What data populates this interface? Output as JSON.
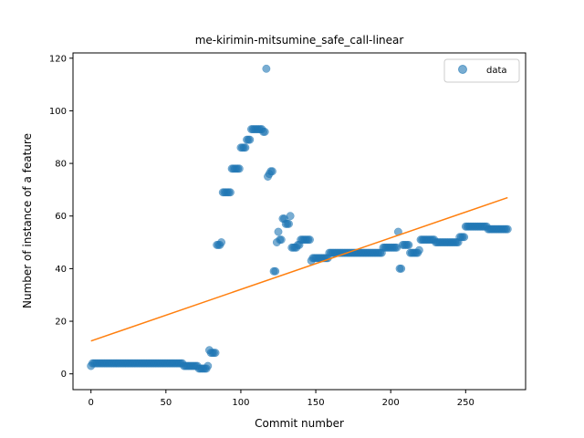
{
  "chart_data": {
    "type": "scatter",
    "title": "me-kirimin-mitsumine_safe_call-linear",
    "xlabel": "Commit number",
    "ylabel": "Number of instance of a feature",
    "xlim": [
      -12,
      290
    ],
    "ylim": [
      -6,
      122
    ],
    "xticks": [
      0,
      50,
      100,
      150,
      200,
      250
    ],
    "yticks": [
      0,
      20,
      40,
      60,
      80,
      100,
      120
    ],
    "grid": false,
    "legend": {
      "placement": "top-right",
      "entries": [
        "data"
      ]
    },
    "series": [
      {
        "name": "data",
        "kind": "scatter",
        "color": "#1f77b4",
        "segments": [
          [
            0,
            0,
            3
          ],
          [
            1,
            1,
            4
          ],
          [
            2,
            61,
            4
          ],
          [
            62,
            71,
            3
          ],
          [
            72,
            77,
            2
          ],
          [
            78,
            78,
            3
          ],
          [
            79,
            79,
            9
          ],
          [
            80,
            83,
            8
          ],
          [
            84,
            86,
            49
          ],
          [
            87,
            87,
            50
          ],
          [
            88,
            93,
            69
          ],
          [
            94,
            99,
            78
          ],
          [
            100,
            103,
            86
          ],
          [
            104,
            106,
            89
          ],
          [
            107,
            114,
            93
          ],
          [
            115,
            116,
            92
          ],
          [
            117,
            117,
            116
          ],
          [
            118,
            118,
            75
          ],
          [
            119,
            119,
            76
          ],
          [
            120,
            121,
            77
          ],
          [
            122,
            123,
            39
          ],
          [
            124,
            124,
            50
          ],
          [
            125,
            125,
            54
          ],
          [
            126,
            127,
            51
          ],
          [
            128,
            129,
            59
          ],
          [
            130,
            132,
            57
          ],
          [
            133,
            133,
            60
          ],
          [
            134,
            137,
            48
          ],
          [
            138,
            139,
            49
          ],
          [
            140,
            146,
            51
          ],
          [
            147,
            147,
            43
          ],
          [
            148,
            158,
            44
          ],
          [
            159,
            194,
            46
          ],
          [
            195,
            204,
            48
          ],
          [
            205,
            205,
            54
          ],
          [
            206,
            207,
            40
          ],
          [
            208,
            212,
            49
          ],
          [
            213,
            218,
            46
          ],
          [
            219,
            219,
            47
          ],
          [
            220,
            229,
            51
          ],
          [
            230,
            245,
            50
          ],
          [
            246,
            249,
            52
          ],
          [
            250,
            264,
            56
          ],
          [
            265,
            278,
            55
          ]
        ]
      },
      {
        "name": "linear fit",
        "kind": "line",
        "color": "#ff7f0e",
        "x": [
          0,
          278
        ],
        "y": [
          12.5,
          67
        ]
      }
    ]
  }
}
